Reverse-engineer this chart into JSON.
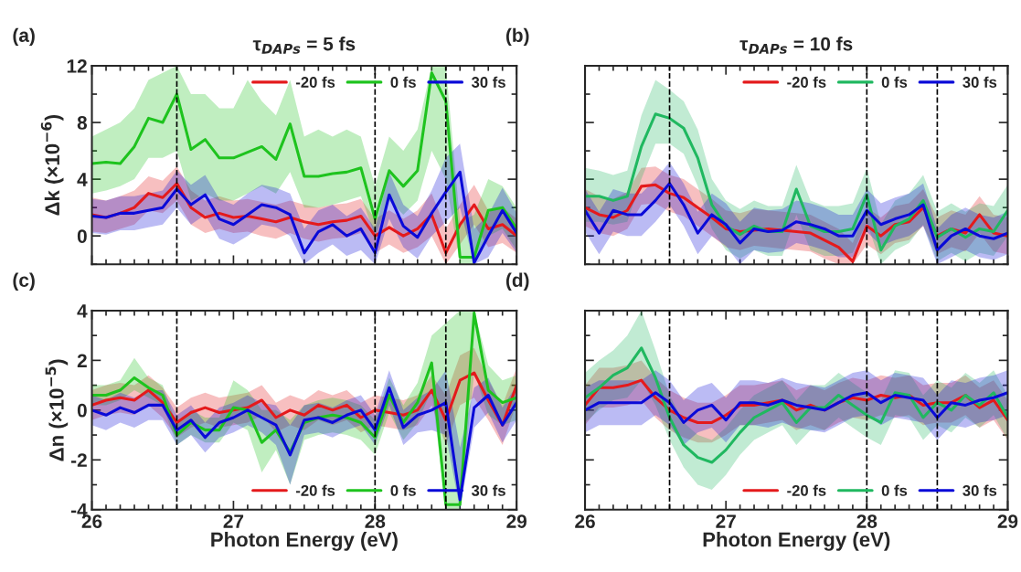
{
  "chart_data": [
    {
      "type": "line",
      "title": "τ$_{DAPs}$ = 5 fs",
      "ylabel": "Δk (×10$^{−6}$)",
      "annotations": [
        "(a)"
      ],
      "x": [
        26.0,
        26.1,
        26.2,
        26.3,
        26.4,
        26.5,
        26.6,
        26.7,
        26.8,
        26.9,
        27.0,
        27.1,
        27.2,
        27.3,
        27.4,
        27.5,
        27.6,
        27.7,
        27.8,
        27.9,
        28.0,
        28.1,
        28.2,
        28.3,
        28.4,
        28.5,
        28.6,
        28.7,
        28.8,
        28.9,
        29.0
      ],
      "xlim": [
        26,
        29
      ],
      "xticks": [
        26,
        27,
        28,
        29
      ],
      "ylim": [
        -2,
        12
      ],
      "yticks": [
        0,
        4,
        8,
        12
      ],
      "tick_labels": "y",
      "legend": "top right",
      "ref_lines": [
        {
          "axis": "x",
          "value": 26.6,
          "line_style": "dashed",
          "color": "#000000"
        },
        {
          "axis": "x",
          "value": 28.0,
          "line_style": "dashed",
          "color": "#000000"
        },
        {
          "axis": "x",
          "value": 28.5,
          "line_style": "dashed",
          "color": "#000000"
        }
      ],
      "series": [
        {
          "name": "-20 fs",
          "color": "#e41a1c",
          "values": [
            1.5,
            1.3,
            1.6,
            2.0,
            3.0,
            2.7,
            3.7,
            2.0,
            1.3,
            1.6,
            1.3,
            1.4,
            1.2,
            1.0,
            1.3,
            1.0,
            0.8,
            1.0,
            1.1,
            1.4,
            0.0,
            0.6,
            0.0,
            0.5,
            1.5,
            -1.2,
            0.8,
            2.2,
            0.5,
            0.8,
            0.0
          ],
          "lower": [
            0.3,
            0.2,
            0.5,
            0.8,
            1.8,
            1.6,
            2.5,
            0.8,
            0.2,
            0.5,
            0.2,
            0.3,
            0.0,
            -0.2,
            0.2,
            -0.2,
            -0.4,
            -0.2,
            -0.1,
            0.2,
            -1.2,
            -0.6,
            -1.2,
            -0.8,
            0.0,
            -2.0,
            -0.6,
            0.8,
            -0.8,
            -0.5,
            -1.2
          ],
          "upper": [
            2.7,
            2.5,
            2.8,
            3.2,
            4.2,
            3.9,
            4.9,
            3.2,
            2.5,
            2.8,
            2.5,
            2.6,
            2.4,
            2.2,
            2.5,
            2.2,
            2.0,
            2.2,
            2.3,
            2.6,
            1.2,
            1.8,
            1.2,
            1.8,
            3.0,
            0.5,
            2.2,
            3.6,
            1.8,
            2.0,
            1.2
          ]
        },
        {
          "name": "0 fs",
          "color": "#1ec31e",
          "values": [
            5.1,
            5.2,
            5.1,
            6.3,
            8.3,
            8.0,
            10.0,
            6.1,
            6.8,
            5.5,
            5.5,
            5.9,
            6.3,
            5.4,
            7.9,
            4.2,
            4.2,
            4.4,
            4.5,
            4.8,
            1.2,
            4.6,
            3.5,
            4.6,
            11.5,
            9.5,
            -1.5,
            -1.5,
            1.8,
            2.0,
            0.5
          ],
          "lower": [
            3.0,
            3.2,
            3.5,
            4.0,
            5.5,
            5.5,
            6.0,
            2.5,
            3.0,
            2.5,
            2.5,
            3.0,
            3.5,
            3.0,
            4.5,
            2.0,
            2.0,
            2.2,
            2.5,
            2.8,
            0.0,
            2.5,
            1.5,
            2.5,
            6.0,
            4.0,
            -2.0,
            -2.0,
            0.0,
            0.5,
            -1.0
          ],
          "upper": [
            7.0,
            7.5,
            8.0,
            9.0,
            11.0,
            11.5,
            12.0,
            10.0,
            10.0,
            9.0,
            9.0,
            11.0,
            9.5,
            8.5,
            11.0,
            7.0,
            7.5,
            7.0,
            7.5,
            7.0,
            3.5,
            7.0,
            6.0,
            7.5,
            12.0,
            12.0,
            1.0,
            1.5,
            4.0,
            3.5,
            2.0
          ]
        },
        {
          "name": "30 fs",
          "color": "#0a0ad8",
          "values": [
            1.4,
            1.3,
            1.6,
            1.6,
            1.8,
            2.0,
            3.3,
            2.2,
            2.9,
            1.2,
            0.8,
            1.5,
            2.2,
            2.0,
            1.5,
            -1.2,
            0.3,
            0.8,
            0.0,
            0.5,
            -1.2,
            2.9,
            0.7,
            -0.1,
            1.6,
            3.1,
            4.5,
            -1.9,
            0.0,
            1.8,
            0.2
          ],
          "lower": [
            0.2,
            0.1,
            0.4,
            0.4,
            0.6,
            0.8,
            2.0,
            0.8,
            1.5,
            -0.2,
            -0.6,
            0.0,
            0.8,
            0.6,
            0.0,
            -2.0,
            -1.2,
            -0.6,
            -1.4,
            -1.0,
            -2.0,
            1.2,
            -0.8,
            -1.6,
            0.0,
            1.0,
            2.0,
            -2.0,
            -1.5,
            0.2,
            -1.2
          ],
          "upper": [
            2.6,
            2.5,
            2.8,
            2.8,
            3.0,
            3.2,
            4.6,
            3.6,
            4.3,
            2.6,
            2.2,
            3.0,
            3.6,
            3.4,
            3.0,
            0.5,
            1.8,
            2.2,
            1.4,
            2.0,
            0.5,
            4.5,
            2.2,
            1.4,
            3.2,
            5.5,
            6.5,
            0.5,
            1.5,
            3.4,
            1.6
          ]
        }
      ]
    },
    {
      "type": "line",
      "title": "τ$_{DAPs}$ = 10 fs",
      "annotations": [
        "(b)"
      ],
      "x": [
        26.0,
        26.1,
        26.2,
        26.3,
        26.4,
        26.5,
        26.6,
        26.7,
        26.8,
        26.9,
        27.0,
        27.1,
        27.2,
        27.3,
        27.4,
        27.5,
        27.6,
        27.7,
        27.8,
        27.9,
        28.0,
        28.1,
        28.2,
        28.3,
        28.4,
        28.5,
        28.6,
        28.7,
        28.8,
        28.9,
        29.0
      ],
      "xlim": [
        26,
        29
      ],
      "xticks": [
        26,
        27,
        28,
        29
      ],
      "ylim": [
        -2,
        12
      ],
      "yticks": [
        0,
        4,
        8,
        12
      ],
      "tick_labels": false,
      "legend": "top right",
      "ref_lines": [
        {
          "axis": "x",
          "value": 26.6,
          "line_style": "dashed",
          "color": "#000000"
        },
        {
          "axis": "x",
          "value": 28.0,
          "line_style": "dashed",
          "color": "#000000"
        },
        {
          "axis": "x",
          "value": 28.5,
          "line_style": "dashed",
          "color": "#000000"
        }
      ],
      "series": [
        {
          "name": "-20 fs",
          "color": "#e41a1c",
          "values": [
            2.0,
            1.5,
            1.3,
            1.8,
            3.5,
            3.6,
            3.0,
            2.7,
            2.0,
            1.3,
            0.5,
            0.3,
            null,
            0.5,
            0.4,
            0.3,
            0.2,
            -0.3,
            -0.8,
            -1.8,
            0.7,
            0.0,
            0.8,
            1.0,
            2.0,
            0.0,
            0.5,
            0.2,
            1.5,
            0.2,
            0.0
          ],
          "lower": [
            0.7,
            0.2,
            0.0,
            0.5,
            2.2,
            2.3,
            1.7,
            1.4,
            0.7,
            0.0,
            -0.8,
            -1.0,
            -0.7,
            -0.8,
            -0.9,
            -1.0,
            -1.1,
            -1.6,
            -2.0,
            -2.0,
            -0.6,
            -1.3,
            -0.5,
            -0.3,
            0.7,
            -1.3,
            -0.8,
            -1.1,
            0.2,
            -1.1,
            -1.3
          ],
          "upper": [
            3.3,
            2.8,
            2.6,
            3.1,
            4.8,
            4.9,
            4.3,
            4.0,
            3.3,
            2.6,
            1.8,
            1.6,
            1.9,
            1.8,
            1.7,
            1.6,
            1.5,
            1.0,
            0.5,
            -0.5,
            2.0,
            1.3,
            2.1,
            2.3,
            3.3,
            1.3,
            1.8,
            1.5,
            2.8,
            1.5,
            1.3
          ]
        },
        {
          "name": "0 fs",
          "color": "#20b860",
          "values": [
            2.8,
            2.8,
            2.5,
            2.8,
            6.3,
            8.6,
            8.3,
            7.6,
            5.5,
            2.2,
            0.7,
            0.1,
            0.7,
            0.3,
            0.3,
            3.3,
            0.7,
            0.3,
            0.3,
            0.5,
            2.9,
            -1.0,
            0.7,
            1.2,
            2.5,
            -0.1,
            0.5,
            -0.1,
            0.5,
            0.3,
            1.8
          ],
          "lower": [
            1.0,
            1.0,
            0.8,
            1.0,
            4.0,
            6.5,
            6.5,
            5.8,
            3.5,
            0.5,
            -1.0,
            -1.6,
            -1.0,
            -1.4,
            -1.4,
            1.5,
            -1.0,
            -1.4,
            -1.4,
            -1.2,
            1.0,
            -2.0,
            -1.0,
            -0.5,
            0.8,
            -1.8,
            -1.2,
            -1.8,
            -1.2,
            -1.4,
            0.0
          ],
          "upper": [
            4.8,
            4.6,
            4.3,
            4.6,
            8.5,
            11.0,
            10.3,
            9.5,
            7.5,
            4.0,
            2.5,
            1.9,
            2.5,
            2.1,
            2.1,
            5.0,
            2.5,
            2.1,
            2.1,
            2.3,
            4.8,
            0.8,
            2.5,
            3.0,
            4.3,
            1.7,
            2.3,
            1.7,
            2.3,
            2.1,
            3.6
          ]
        },
        {
          "name": "30 fs",
          "color": "#0a0ad8",
          "values": [
            1.8,
            0.2,
            1.8,
            1.5,
            1.5,
            2.5,
            3.7,
            2.2,
            0.2,
            1.5,
            0.8,
            -0.5,
            0.5,
            0.3,
            0.4,
            1.0,
            0.8,
            0.5,
            0.0,
            0.0,
            1.8,
            0.8,
            1.2,
            1.5,
            2.2,
            -1.0,
            0.0,
            0.5,
            0.0,
            -0.2,
            0.2
          ],
          "lower": [
            0.3,
            -1.3,
            0.3,
            0.0,
            0.0,
            1.0,
            2.2,
            0.7,
            -1.3,
            0.0,
            -0.7,
            -2.0,
            -1.0,
            -1.2,
            -1.1,
            -0.5,
            -0.7,
            -1.0,
            -1.5,
            -1.5,
            0.3,
            -0.7,
            -0.3,
            0.0,
            0.7,
            -2.0,
            -1.5,
            -1.0,
            -1.5,
            -1.7,
            -1.3
          ],
          "upper": [
            3.3,
            1.7,
            3.3,
            3.0,
            3.0,
            4.0,
            5.2,
            3.7,
            1.7,
            3.0,
            2.3,
            1.0,
            2.0,
            1.8,
            1.9,
            2.5,
            2.3,
            2.0,
            1.5,
            1.5,
            3.3,
            2.3,
            2.7,
            3.0,
            3.7,
            0.5,
            1.5,
            2.0,
            1.5,
            1.3,
            1.7
          ]
        }
      ]
    },
    {
      "type": "line",
      "xlabel": "Photon Energy (eV)",
      "ylabel": "Δn (×10$^{−5}$)",
      "annotations": [
        "(c)"
      ],
      "x": [
        26.0,
        26.1,
        26.2,
        26.3,
        26.4,
        26.5,
        26.6,
        26.7,
        26.8,
        26.9,
        27.0,
        27.1,
        27.2,
        27.3,
        27.4,
        27.5,
        27.6,
        27.7,
        27.8,
        27.9,
        28.0,
        28.1,
        28.2,
        28.3,
        28.4,
        28.5,
        28.6,
        28.7,
        28.8,
        28.9,
        29.0
      ],
      "xlim": [
        26,
        29
      ],
      "xticks": [
        26,
        27,
        28,
        29
      ],
      "ylim": [
        -4,
        4
      ],
      "yticks": [
        -4,
        -2,
        0,
        2,
        4
      ],
      "legend": "bottom right",
      "ref_lines": [
        {
          "axis": "x",
          "value": 26.6,
          "line_style": "dashed",
          "color": "#000000"
        },
        {
          "axis": "x",
          "value": 28.0,
          "line_style": "dashed",
          "color": "#000000"
        },
        {
          "axis": "x",
          "value": 28.5,
          "line_style": "dashed",
          "color": "#000000"
        }
      ],
      "series": [
        {
          "name": "-20 fs",
          "color": "#e41a1c",
          "values": [
            0.2,
            0.4,
            0.5,
            0.4,
            0.8,
            0.3,
            -0.5,
            -0.1,
            0.1,
            -0.1,
            0.0,
            0.1,
            0.4,
            -0.3,
            0.0,
            -0.2,
            0.2,
            0.0,
            0.2,
            -0.3,
            0.0,
            -0.1,
            -0.2,
            0.0,
            0.8,
            -0.4,
            1.2,
            1.5,
            0.4,
            -0.6,
            1.0
          ],
          "lower": [
            -0.4,
            -0.2,
            -0.1,
            -0.2,
            0.2,
            -0.3,
            -1.1,
            -0.7,
            -0.5,
            -0.7,
            -0.6,
            -0.5,
            -0.2,
            -0.9,
            -0.6,
            -0.8,
            -0.4,
            -0.6,
            -0.4,
            -0.9,
            -0.6,
            -0.7,
            -0.8,
            -0.6,
            0.2,
            -1.4,
            0.2,
            0.5,
            -0.4,
            -1.4,
            0.3
          ],
          "upper": [
            0.8,
            1.0,
            1.1,
            1.0,
            1.4,
            0.9,
            0.1,
            0.5,
            0.7,
            0.5,
            0.6,
            0.7,
            1.0,
            0.3,
            0.6,
            0.4,
            0.8,
            0.6,
            0.8,
            0.3,
            0.6,
            0.5,
            0.4,
            0.6,
            1.4,
            0.6,
            2.2,
            2.5,
            1.2,
            0.2,
            1.7
          ]
        },
        {
          "name": "0 fs",
          "color": "#1ec31e",
          "values": [
            0.6,
            0.6,
            0.8,
            1.3,
            0.9,
            0.6,
            -1.0,
            -0.5,
            -0.8,
            -0.8,
            0.1,
            0.0,
            -1.3,
            -0.8,
            -1.7,
            -0.5,
            -0.3,
            -0.2,
            -0.3,
            -0.5,
            -1.1,
            0.6,
            -0.5,
            0.3,
            1.9,
            -3.8,
            -3.8,
            3.9,
            0.8,
            0.3,
            0.5
          ],
          "lower": [
            0.2,
            0.2,
            0.4,
            0.8,
            0.5,
            0.2,
            -1.4,
            -1.0,
            -1.3,
            -1.3,
            -0.5,
            -0.8,
            -2.5,
            -1.6,
            -3.0,
            -1.2,
            -1.0,
            -0.9,
            -1.0,
            -1.2,
            -1.8,
            -0.1,
            -1.2,
            -0.5,
            0.8,
            -4.0,
            -4.0,
            1.5,
            -0.2,
            -0.6,
            -0.4
          ],
          "upper": [
            1.0,
            1.0,
            1.2,
            2.1,
            1.3,
            1.0,
            -0.6,
            0.0,
            -0.3,
            -0.3,
            1.2,
            0.8,
            0.0,
            0.0,
            -0.4,
            0.2,
            0.4,
            0.5,
            0.4,
            0.2,
            -0.4,
            1.3,
            0.2,
            1.1,
            3.0,
            3.5,
            4.0,
            4.0,
            1.8,
            1.2,
            1.4
          ]
        },
        {
          "name": "30 fs",
          "color": "#0a0ad8",
          "values": [
            0.0,
            -0.2,
            0.1,
            -0.1,
            0.2,
            0.2,
            -0.8,
            -0.4,
            -1.1,
            -0.5,
            -0.3,
            0.0,
            -0.3,
            -0.6,
            -1.8,
            -0.4,
            -0.3,
            -0.5,
            -0.2,
            0.0,
            -0.8,
            0.9,
            -0.7,
            -0.2,
            0.0,
            0.3,
            -3.6,
            0.1,
            0.6,
            -0.6,
            0.3
          ],
          "lower": [
            -0.6,
            -0.8,
            -0.5,
            -0.7,
            -0.4,
            -0.4,
            -1.4,
            -1.0,
            -1.7,
            -1.1,
            -0.9,
            -0.6,
            -0.9,
            -1.4,
            -3.0,
            -1.0,
            -0.9,
            -1.1,
            -0.8,
            -0.6,
            -1.4,
            0.2,
            -1.4,
            -0.9,
            -0.8,
            -1.0,
            -4.0,
            -0.7,
            -0.1,
            -1.3,
            -0.4
          ],
          "upper": [
            0.6,
            0.4,
            0.7,
            0.5,
            0.8,
            0.8,
            -0.2,
            0.2,
            -0.5,
            0.1,
            0.3,
            0.6,
            0.3,
            0.2,
            -0.6,
            0.2,
            0.3,
            0.1,
            0.4,
            0.6,
            -0.2,
            1.6,
            0.0,
            0.5,
            0.8,
            1.6,
            -1.5,
            0.9,
            1.3,
            0.1,
            1.0
          ]
        }
      ]
    },
    {
      "type": "line",
      "xlabel": "Photon Energy (eV)",
      "annotations": [
        "(d)"
      ],
      "x": [
        26.0,
        26.1,
        26.2,
        26.3,
        26.4,
        26.5,
        26.6,
        26.7,
        26.8,
        26.9,
        27.0,
        27.1,
        27.2,
        27.3,
        27.4,
        27.5,
        27.6,
        27.7,
        27.8,
        27.9,
        28.0,
        28.1,
        28.2,
        28.3,
        28.4,
        28.5,
        28.6,
        28.7,
        28.8,
        28.9,
        29.0
      ],
      "xlim": [
        26,
        29
      ],
      "xticks": [
        26,
        27,
        28,
        29
      ],
      "ylim": [
        -4,
        4
      ],
      "yticks": [
        -4,
        -2,
        0,
        2,
        4
      ],
      "tick_labels": "x",
      "legend": "bottom right",
      "ref_lines": [
        {
          "axis": "x",
          "value": 26.6,
          "line_style": "dashed",
          "color": "#000000"
        },
        {
          "axis": "x",
          "value": 28.0,
          "line_style": "dashed",
          "color": "#000000"
        },
        {
          "axis": "x",
          "value": 28.5,
          "line_style": "dashed",
          "color": "#000000"
        }
      ],
      "series": [
        {
          "name": "-20 fs",
          "color": "#e41a1c",
          "values": [
            0.2,
            0.9,
            0.9,
            1.0,
            1.2,
            0.5,
            0.0,
            -0.3,
            -0.5,
            -0.5,
            -0.2,
            0.2,
            0.2,
            0.3,
            0.4,
            0.0,
            0.2,
            0.0,
            0.3,
            0.5,
            0.4,
            0.6,
            0.5,
            0.6,
            0.2,
            0.3,
            0.3,
            0.6,
            0.1,
            0.4,
            -0.4
          ],
          "lower": [
            -0.6,
            0.1,
            0.1,
            0.2,
            0.4,
            -0.3,
            -0.8,
            -1.1,
            -1.3,
            -1.3,
            -1.0,
            -0.6,
            -0.6,
            -0.5,
            -0.4,
            -0.8,
            -0.6,
            -0.8,
            -0.5,
            -0.3,
            -0.4,
            -0.2,
            -0.3,
            -0.2,
            -0.6,
            -0.5,
            -0.5,
            -0.2,
            -0.7,
            -0.4,
            -1.2
          ],
          "upper": [
            1.0,
            1.7,
            1.7,
            1.8,
            2.0,
            1.3,
            0.8,
            0.5,
            0.3,
            0.3,
            0.6,
            1.0,
            1.0,
            1.1,
            1.2,
            0.8,
            1.0,
            0.8,
            1.1,
            1.3,
            1.2,
            1.4,
            1.3,
            1.4,
            1.0,
            1.1,
            1.1,
            1.4,
            0.9,
            1.2,
            0.4
          ]
        },
        {
          "name": "0 fs",
          "color": "#20b860",
          "values": [
            0.5,
            0.9,
            1.4,
            1.7,
            2.5,
            1.3,
            -0.3,
            -1.4,
            -1.9,
            -2.1,
            -1.6,
            -0.9,
            -0.3,
            0.0,
            0.3,
            -0.5,
            0.1,
            0.1,
            0.6,
            0.2,
            -0.2,
            -0.5,
            0.7,
            0.6,
            -0.3,
            0.3,
            0.0,
            0.6,
            0.2,
            0.7,
            -0.3
          ],
          "lower": [
            -0.5,
            0.0,
            0.4,
            0.5,
            1.2,
            0.2,
            -1.2,
            -2.3,
            -3.0,
            -3.2,
            -2.6,
            -1.8,
            -1.2,
            -0.9,
            -0.6,
            -1.4,
            -0.8,
            -0.8,
            -0.3,
            -0.7,
            -1.1,
            -1.4,
            -0.2,
            -0.3,
            -1.2,
            -0.6,
            -0.9,
            -0.3,
            -0.7,
            -0.2,
            -1.2
          ],
          "upper": [
            1.5,
            2.0,
            2.4,
            3.0,
            4.0,
            2.4,
            0.6,
            -0.5,
            -1.0,
            -1.2,
            -0.7,
            0.0,
            0.6,
            0.9,
            1.2,
            0.4,
            1.0,
            1.0,
            1.5,
            1.1,
            0.7,
            0.4,
            1.6,
            1.5,
            0.6,
            1.2,
            0.9,
            1.5,
            1.1,
            1.6,
            0.6
          ]
        },
        {
          "name": "30 fs",
          "color": "#0a0ad8",
          "values": [
            0.0,
            0.3,
            0.3,
            0.3,
            0.3,
            0.7,
            0.3,
            -0.5,
            0.0,
            0.2,
            -0.4,
            0.3,
            0.3,
            0.2,
            0.4,
            0.2,
            0.1,
            0.0,
            0.3,
            0.6,
            0.7,
            0.3,
            0.6,
            0.5,
            0.4,
            -0.3,
            0.3,
            0.2,
            0.4,
            0.5,
            0.7
          ],
          "lower": [
            -0.9,
            -0.6,
            -0.6,
            -0.6,
            -0.6,
            -0.2,
            -0.6,
            -1.4,
            -0.9,
            -0.7,
            -1.3,
            -0.6,
            -0.6,
            -0.7,
            -0.5,
            -0.7,
            -0.8,
            -0.9,
            -0.6,
            -0.3,
            -0.2,
            -0.6,
            -0.3,
            -0.4,
            -0.5,
            -1.2,
            -0.6,
            -0.7,
            -0.5,
            -0.4,
            -0.2
          ],
          "upper": [
            0.9,
            1.2,
            1.2,
            1.2,
            1.2,
            1.6,
            1.2,
            0.4,
            0.9,
            1.1,
            0.5,
            1.2,
            1.2,
            1.1,
            1.3,
            1.1,
            1.0,
            0.9,
            1.2,
            1.5,
            1.6,
            1.2,
            1.5,
            1.4,
            1.3,
            0.6,
            1.2,
            1.1,
            1.3,
            1.4,
            1.6
          ]
        }
      ]
    }
  ]
}
